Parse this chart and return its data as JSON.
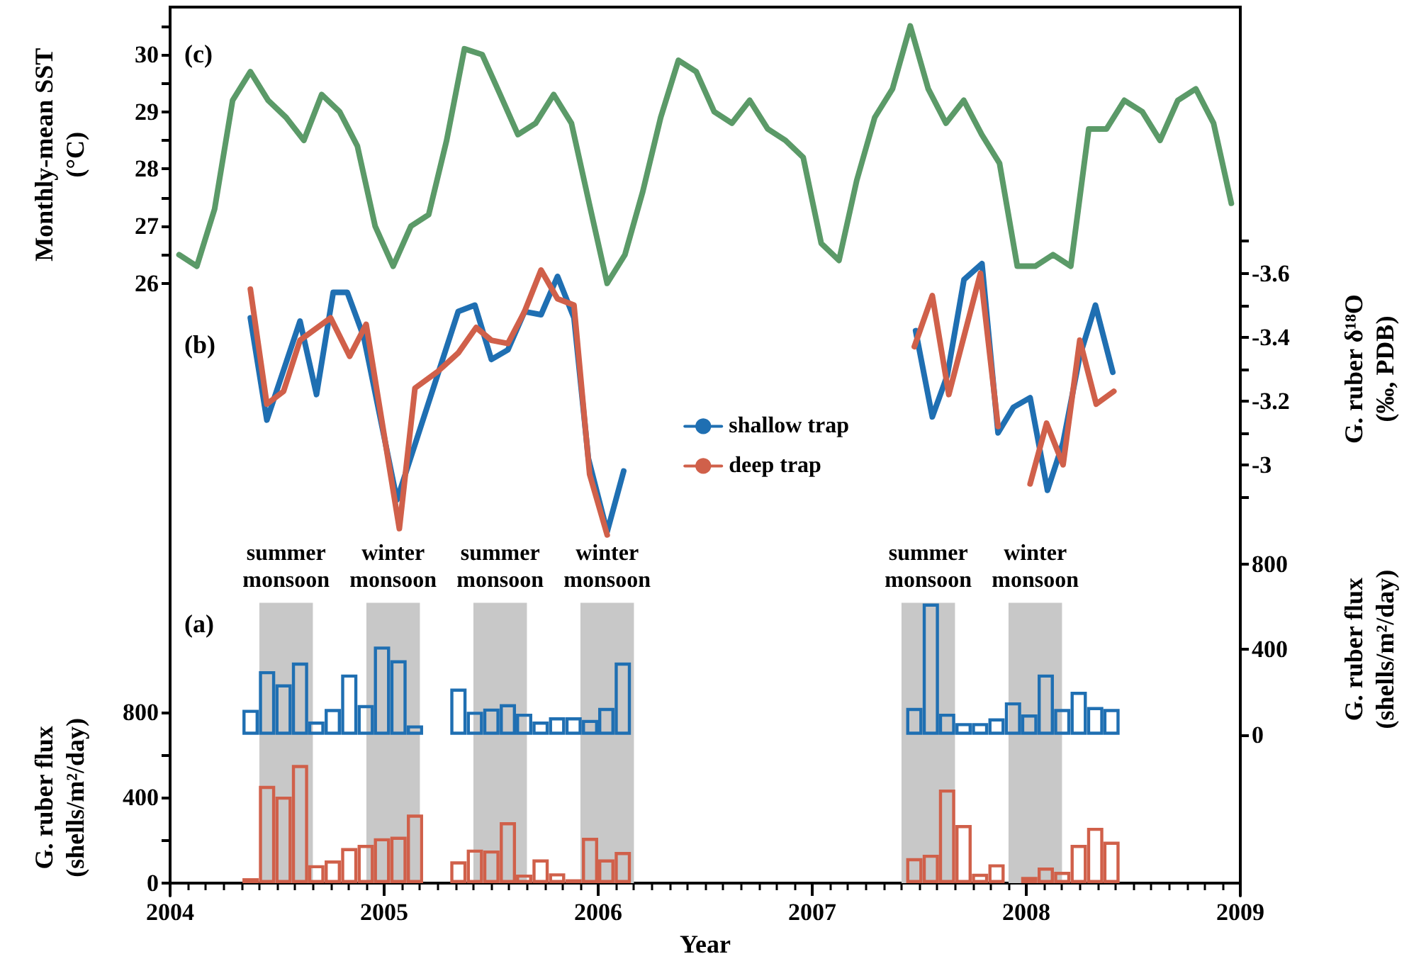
{
  "chart_data": [
    {
      "type": "line",
      "ylabel": "Monthly-mean SST (°C)",
      "xlim": [
        2004,
        2009
      ],
      "xticks": [
        2004,
        2005,
        2006,
        2007,
        2008,
        2009
      ],
      "tick_labels": "y",
      "ylim": [
        15.29,
        30.83
      ],
      "yticks": [
        26,
        {
          "value": 26.5,
          "label": null
        },
        27,
        {
          "value": 27.5,
          "label": null
        },
        28,
        {
          "value": 28.5,
          "label": null
        },
        29,
        {
          "value": 29.5,
          "label": null
        },
        30,
        {
          "value": 30.5,
          "label": null
        }
      ],
      "grid": false,
      "marker": "none",
      "line_style": "solid",
      "annotations": [
        "(c)"
      ],
      "series": [
        {
          "color": "#5b9a68",
          "x": [
            2004.042,
            2004.125,
            2004.208,
            2004.292,
            2004.375,
            2004.458,
            2004.542,
            2004.625,
            2004.708,
            2004.792,
            2004.875,
            2004.958,
            2005.042,
            2005.125,
            2005.208,
            2005.292,
            2005.375,
            2005.458,
            2005.542,
            2005.625,
            2005.708,
            2005.792,
            2005.875,
            2005.958,
            2006.042,
            2006.125,
            2006.208,
            2006.292,
            2006.375,
            2006.458,
            2006.542,
            2006.625,
            2006.708,
            2006.792,
            2006.875,
            2006.958,
            2007.042,
            2007.125,
            2007.208,
            2007.292,
            2007.375,
            2007.458,
            2007.542,
            2007.625,
            2007.708,
            2007.792,
            2007.875,
            2007.958,
            2008.042,
            2008.125,
            2008.208,
            2008.292,
            2008.375,
            2008.458,
            2008.542,
            2008.625,
            2008.708,
            2008.792,
            2008.875,
            2008.958
          ],
          "values": [
            26.5,
            26.3,
            27.3,
            29.2,
            29.7,
            29.2,
            28.9,
            28.5,
            29.3,
            29.0,
            28.4,
            27.0,
            26.3,
            27.0,
            27.2,
            28.5,
            30.1,
            30.0,
            29.3,
            28.6,
            28.8,
            29.3,
            28.8,
            27.4,
            26.0,
            26.5,
            27.6,
            28.9,
            29.9,
            29.7,
            29.0,
            28.8,
            29.2,
            28.7,
            28.5,
            28.2,
            26.7,
            26.4,
            27.8,
            28.9,
            29.4,
            30.5,
            29.4,
            28.8,
            29.2,
            28.6,
            28.1,
            26.3,
            26.3,
            26.5,
            26.3,
            28.7,
            28.7,
            29.2,
            29.0,
            28.5,
            29.2,
            29.4,
            28.8,
            27.4
          ]
        }
      ]
    },
    {
      "type": "line",
      "ylabel": "G. ruber δ¹⁸O (‰, PDB)",
      "xlim": [
        2004,
        2009
      ],
      "xticks": [
        2004,
        2005,
        2006,
        2007,
        2008,
        2009
      ],
      "tick_labels": "y",
      "ylim": [
        -1.649,
        -4.434
      ],
      "yticks": [
        {
          "value": -3.7,
          "label": null
        },
        -3.6,
        {
          "value": -3.5,
          "label": null
        },
        -3.4,
        {
          "value": -3.3,
          "label": null
        },
        -3.2,
        {
          "value": -3.1,
          "label": null
        },
        -3,
        {
          "value": -2.9,
          "label": null
        }
      ],
      "grid": false,
      "legend": "center",
      "marker": "none",
      "line_style": "solid",
      "annotations": [
        "(b)"
      ],
      "series": [
        {
          "name": "shallow trap",
          "color": "#1f6fb2",
          "x": [
            2004.375,
            2004.452,
            2004.607,
            2004.684,
            2004.762,
            2004.828,
            2004.905,
            2005.06,
            2005.346,
            2005.424,
            2005.501,
            2005.578,
            2005.656,
            2005.733,
            2005.81,
            2005.887,
            2005.954,
            2006.042,
            2006.119,
            2007.0,
            2007.483,
            2007.561,
            2007.631,
            2007.709,
            2007.793,
            2007.868,
            2007.94,
            2008.018,
            2008.099,
            2008.172,
            2008.25,
            2008.323,
            2008.404
          ],
          "values": [
            -3.46,
            -3.14,
            -3.45,
            -3.22,
            -3.54,
            -3.54,
            -3.4,
            -2.89,
            -3.48,
            -3.5,
            -3.33,
            -3.36,
            -3.48,
            -3.47,
            -3.59,
            -3.46,
            -3.02,
            -2.79,
            -2.98,
            null,
            -3.42,
            -3.15,
            -3.28,
            -3.58,
            -3.63,
            -3.1,
            -3.18,
            -3.21,
            -2.92,
            -3.07,
            -3.34,
            -3.5,
            -3.29
          ]
        },
        {
          "name": "deep trap",
          "color": "#d0604a",
          "x": [
            2004.375,
            2004.452,
            2004.53,
            2004.607,
            2004.75,
            2004.839,
            2004.916,
            2005.071,
            2005.144,
            2005.247,
            2005.346,
            2005.43,
            2005.501,
            2005.578,
            2005.656,
            2005.733,
            2005.81,
            2005.887,
            2005.96,
            2006.042,
            2007.0,
            2007.477,
            2007.561,
            2007.638,
            2007.786,
            2007.868,
            2007.94,
            2008.018,
            2008.095,
            2008.172,
            2008.25,
            2008.327,
            2008.409
          ],
          "values": [
            -3.55,
            -3.19,
            -3.23,
            -3.39,
            -3.46,
            -3.34,
            -3.44,
            -2.8,
            -3.24,
            -3.29,
            -3.35,
            -3.43,
            -3.39,
            -3.38,
            -3.48,
            -3.61,
            -3.52,
            -3.5,
            -2.97,
            -2.78,
            null,
            -3.37,
            -3.53,
            -3.22,
            -3.6,
            -3.12,
            null,
            -2.94,
            -3.13,
            -3.0,
            -3.39,
            -3.19,
            -3.23
          ]
        }
      ]
    },
    {
      "type": "bar",
      "xlabel": "Year",
      "ylabel": "G. ruber flux (shells/m²/day)",
      "y2label": "G. ruber flux (shells/m²/day)",
      "xlim": [
        2004,
        2009
      ],
      "xticks": [
        2004,
        2005,
        2006,
        2007,
        2008,
        2009
      ],
      "ylim": [
        0,
        4100
      ],
      "yticks": [
        0,
        {
          "value": 200,
          "label": null
        },
        400,
        {
          "value": 600,
          "label": null
        },
        800
      ],
      "y2lim": [
        -694,
        3405
      ],
      "y2ticks": [
        0,
        400,
        800
      ],
      "grid": false,
      "annotations": [
        "(a)"
      ],
      "bands": [
        {
          "axis": "x",
          "from": 2004.417,
          "to": 2004.667,
          "label": "summer monsoon",
          "color": "#c8c8c8"
        },
        {
          "axis": "x",
          "from": 2004.917,
          "to": 2005.167,
          "label": "winter monsoon",
          "color": "#c8c8c8"
        },
        {
          "axis": "x",
          "from": 2005.417,
          "to": 2005.667,
          "label": "summer monsoon",
          "color": "#c8c8c8"
        },
        {
          "axis": "x",
          "from": 2005.917,
          "to": 2006.167,
          "label": "winter monsoon",
          "color": "#c8c8c8"
        },
        {
          "axis": "x",
          "from": 2007.417,
          "to": 2007.667,
          "label": "summer monsoon",
          "color": "#c8c8c8"
        },
        {
          "axis": "x",
          "from": 2007.917,
          "to": 2008.167,
          "label": "winter monsoon",
          "color": "#c8c8c8"
        }
      ],
      "series": [
        {
          "axis": "y2",
          "color": "#1f6fb2",
          "x": [
            2004.376,
            2004.453,
            2004.53,
            2004.607,
            2004.683,
            2004.76,
            2004.837,
            2004.914,
            2004.99,
            2005.067,
            2005.144,
            2005.347,
            2005.424,
            2005.501,
            2005.578,
            2005.654,
            2005.731,
            2005.808,
            2005.885,
            2005.962,
            2006.038,
            2006.115,
            2007.477,
            2007.554,
            2007.63,
            2007.707,
            2007.784,
            2007.861,
            2007.938,
            2008.014,
            2008.091,
            2008.168,
            2008.245,
            2008.322,
            2008.398
          ],
          "values": [
            117,
            298,
            236,
            338,
            62,
            121,
            282,
            139,
            413,
            349,
            44,
            216,
            108,
            123,
            143,
            99,
            62,
            82,
            82,
            70,
            126,
            338,
            126,
            614,
            99,
            55,
            55,
            77,
            152,
            95,
            282,
            121,
            201,
            130,
            121
          ]
        },
        {
          "color": "#d0604a",
          "x": [
            2004.376,
            2004.453,
            2004.53,
            2004.607,
            2004.683,
            2004.76,
            2004.837,
            2004.914,
            2004.99,
            2005.067,
            2005.144,
            2005.347,
            2005.424,
            2005.501,
            2005.578,
            2005.654,
            2005.731,
            2005.808,
            2005.885,
            2005.962,
            2006.038,
            2006.115,
            2007.477,
            2007.554,
            2007.63,
            2007.707,
            2007.784,
            2007.861,
            2007.938,
            2008.014,
            2008.091,
            2008.168,
            2008.245,
            2008.322,
            2008.398
          ],
          "values": [
            23,
            455,
            405,
            553,
            84,
            106,
            164,
            179,
            210,
            217,
            321,
            102,
            157,
            153,
            285,
            40,
            111,
            46,
            18,
            212,
            111,
            146,
            117,
            133,
            438,
            272,
            44,
            88,
            null,
            29,
            73,
            53,
            179,
            259,
            194
          ]
        }
      ]
    }
  ]
}
